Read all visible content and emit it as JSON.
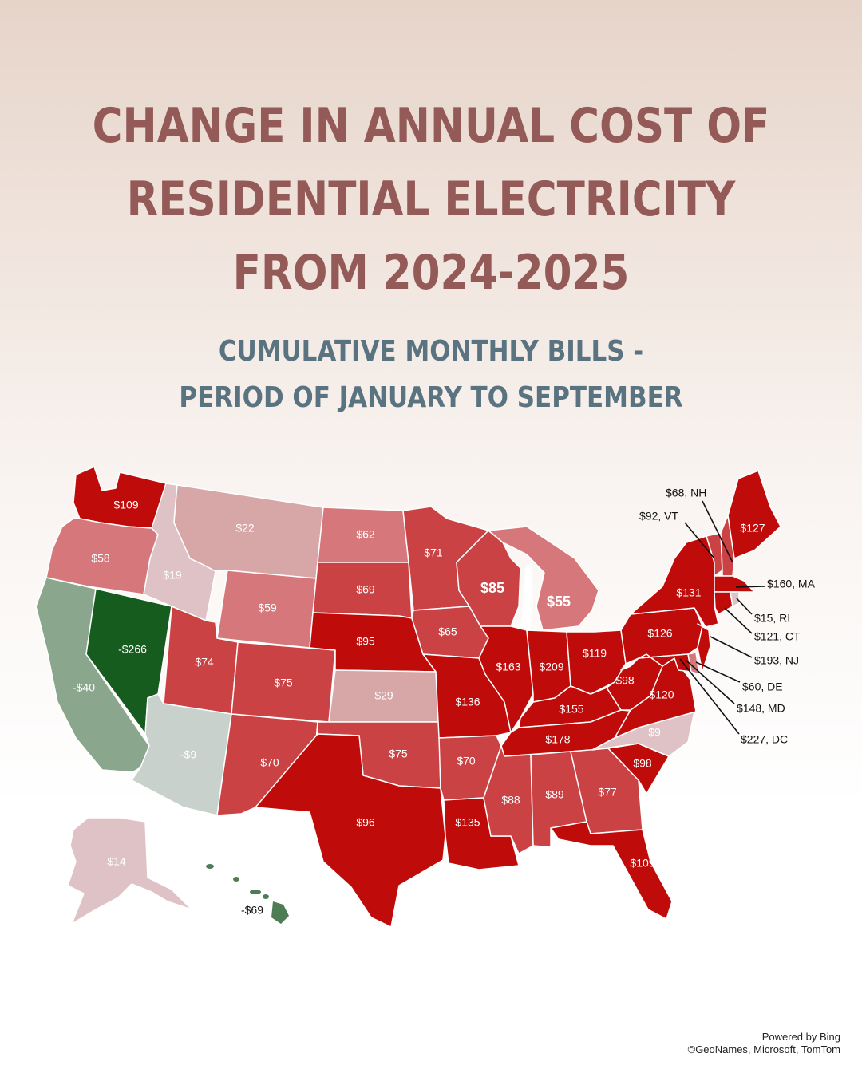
{
  "title": {
    "line1": "CHANGE IN ANNUAL COST OF",
    "line2": "RESIDENTIAL ELECTRICITY",
    "line3": "FROM 2024-2025"
  },
  "subtitle": {
    "line1": "CUMULATIVE MONTHLY BILLS -",
    "line2": "PERIOD OF JANUARY TO SEPTEMBER"
  },
  "colors": {
    "title": "#945a58",
    "subtitle": "#5a7380",
    "dark_red": "#c00b0b",
    "mid_red": "#cb4245",
    "light_red": "#d6787b",
    "pale_red": "#d7a7a8",
    "very_pale_red": "#dfc2c5",
    "pale_gray": "#c9d1cc",
    "light_green": "#8aa68c",
    "mid_green": "#4e7c55",
    "dark_green": "#155c1e"
  },
  "map": {
    "states": [
      {
        "name": "WA",
        "label": "$109",
        "value": 109
      },
      {
        "name": "OR",
        "label": "$58",
        "value": 58
      },
      {
        "name": "CA",
        "label": "-$40",
        "value": -40
      },
      {
        "name": "NV",
        "label": "-$266",
        "value": -266
      },
      {
        "name": "ID",
        "label": "$19",
        "value": 19
      },
      {
        "name": "MT",
        "label": "$22",
        "value": 22
      },
      {
        "name": "WY",
        "label": "$59",
        "value": 59
      },
      {
        "name": "UT",
        "label": "$74",
        "value": 74
      },
      {
        "name": "AZ",
        "label": "-$9",
        "value": -9
      },
      {
        "name": "CO",
        "label": "$75",
        "value": 75
      },
      {
        "name": "NM",
        "label": "$70",
        "value": 70
      },
      {
        "name": "ND",
        "label": "$62",
        "value": 62
      },
      {
        "name": "SD",
        "label": "$69",
        "value": 69
      },
      {
        "name": "NE",
        "label": "$95",
        "value": 95
      },
      {
        "name": "KS",
        "label": "$29",
        "value": 29
      },
      {
        "name": "OK",
        "label": "$75",
        "value": 75
      },
      {
        "name": "TX",
        "label": "$96",
        "value": 96
      },
      {
        "name": "MN",
        "label": "$71",
        "value": 71
      },
      {
        "name": "IA",
        "label": "$65",
        "value": 65
      },
      {
        "name": "MO",
        "label": "$136",
        "value": 136
      },
      {
        "name": "AR",
        "label": "$70",
        "value": 70
      },
      {
        "name": "LA",
        "label": "$135",
        "value": 135
      },
      {
        "name": "WI",
        "label": "$85",
        "value": 85
      },
      {
        "name": "MI",
        "label": "$55",
        "value": 55
      },
      {
        "name": "IL",
        "label": "$163",
        "value": 163
      },
      {
        "name": "IN",
        "label": "$209",
        "value": 209
      },
      {
        "name": "OH",
        "label": "$119",
        "value": 119
      },
      {
        "name": "KY",
        "label": "$155",
        "value": 155
      },
      {
        "name": "TN",
        "label": "$178",
        "value": 178
      },
      {
        "name": "MS",
        "label": "$88",
        "value": 88
      },
      {
        "name": "AL",
        "label": "$89",
        "value": 89
      },
      {
        "name": "GA",
        "label": "$77",
        "value": 77
      },
      {
        "name": "FL",
        "label": "$109",
        "value": 109
      },
      {
        "name": "SC",
        "label": "$98",
        "value": 98
      },
      {
        "name": "NC",
        "label": "$9",
        "value": 9
      },
      {
        "name": "VA",
        "label": "$120",
        "value": 120
      },
      {
        "name": "WV",
        "label": "$98",
        "value": 98
      },
      {
        "name": "PA",
        "label": "$126",
        "value": 126
      },
      {
        "name": "NY",
        "label": "$131",
        "value": 131
      },
      {
        "name": "ME",
        "label": "$127",
        "value": 127
      },
      {
        "name": "AK",
        "label": "$14",
        "value": 14
      },
      {
        "name": "HI",
        "label": "-$69",
        "value": -69
      }
    ],
    "callouts": [
      {
        "name": "NH",
        "label": "$68, NH",
        "value": 68
      },
      {
        "name": "VT",
        "label": "$92, VT",
        "value": 92
      },
      {
        "name": "MA",
        "label": "$160, MA",
        "value": 160
      },
      {
        "name": "RI",
        "label": "$15, RI",
        "value": 15
      },
      {
        "name": "CT",
        "label": "$121, CT",
        "value": 121
      },
      {
        "name": "NJ",
        "label": "$193, NJ",
        "value": 193
      },
      {
        "name": "DE",
        "label": "$60, DE",
        "value": 60
      },
      {
        "name": "MD",
        "label": "$148, MD",
        "value": 148
      },
      {
        "name": "DC",
        "label": "$227, DC",
        "value": 227
      }
    ]
  },
  "credit": {
    "line1": "Powered by Bing",
    "line2": "©GeoNames, Microsoft, TomTom"
  }
}
